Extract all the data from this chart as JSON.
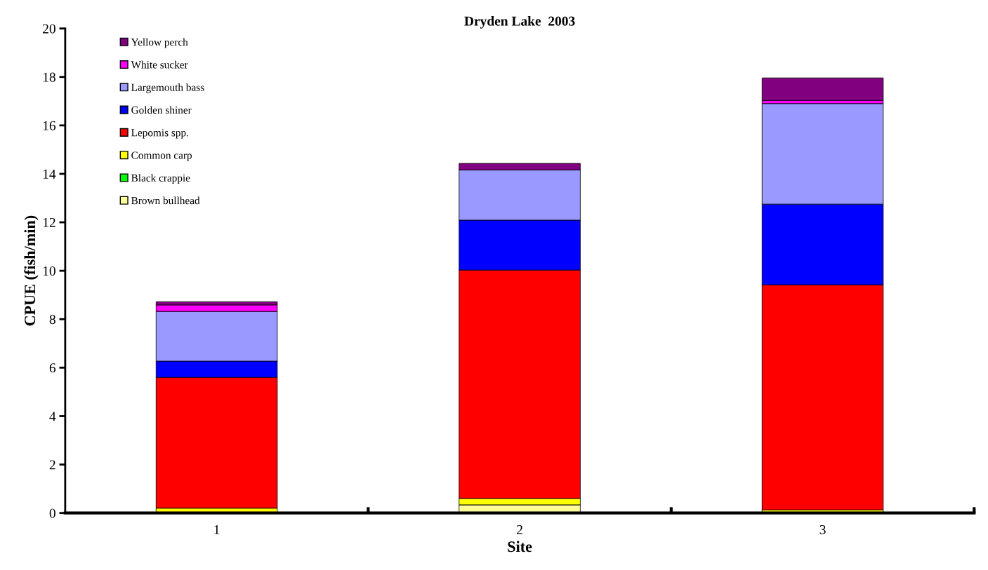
{
  "chart_data": {
    "type": "bar",
    "stacked": true,
    "title": "Dryden Lake  2003",
    "xlabel": "Site",
    "ylabel": "CPUE (fish/min)",
    "categories": [
      "1",
      "2",
      "3"
    ],
    "series": [
      {
        "name": "Brown bullhead",
        "color": "#ffff99",
        "values": [
          0,
          0.34,
          0
        ]
      },
      {
        "name": "Black crappie",
        "color": "#00ff00",
        "values": [
          0,
          0,
          0
        ]
      },
      {
        "name": "Common carp",
        "color": "#ffff00",
        "values": [
          0.2,
          0.26,
          0.13
        ]
      },
      {
        "name": "Lepomis spp.",
        "color": "#ff0000",
        "values": [
          5.4,
          9.43,
          9.29
        ]
      },
      {
        "name": "Golden shiner",
        "color": "#0000ff",
        "values": [
          0.67,
          2.06,
          3.33
        ]
      },
      {
        "name": "Largemouth bass",
        "color": "#9999ff",
        "values": [
          2.05,
          2.07,
          4.15
        ]
      },
      {
        "name": "White sucker",
        "color": "#ff00ff",
        "values": [
          0.27,
          0,
          0.13
        ]
      },
      {
        "name": "Yellow perch",
        "color": "#800080",
        "values": [
          0.13,
          0.27,
          0.93
        ]
      }
    ],
    "ylim": [
      0,
      20
    ],
    "yticks": [
      0,
      2,
      4,
      6,
      8,
      10,
      12,
      14,
      16,
      18,
      20
    ],
    "grid": false,
    "legend": "top left"
  }
}
